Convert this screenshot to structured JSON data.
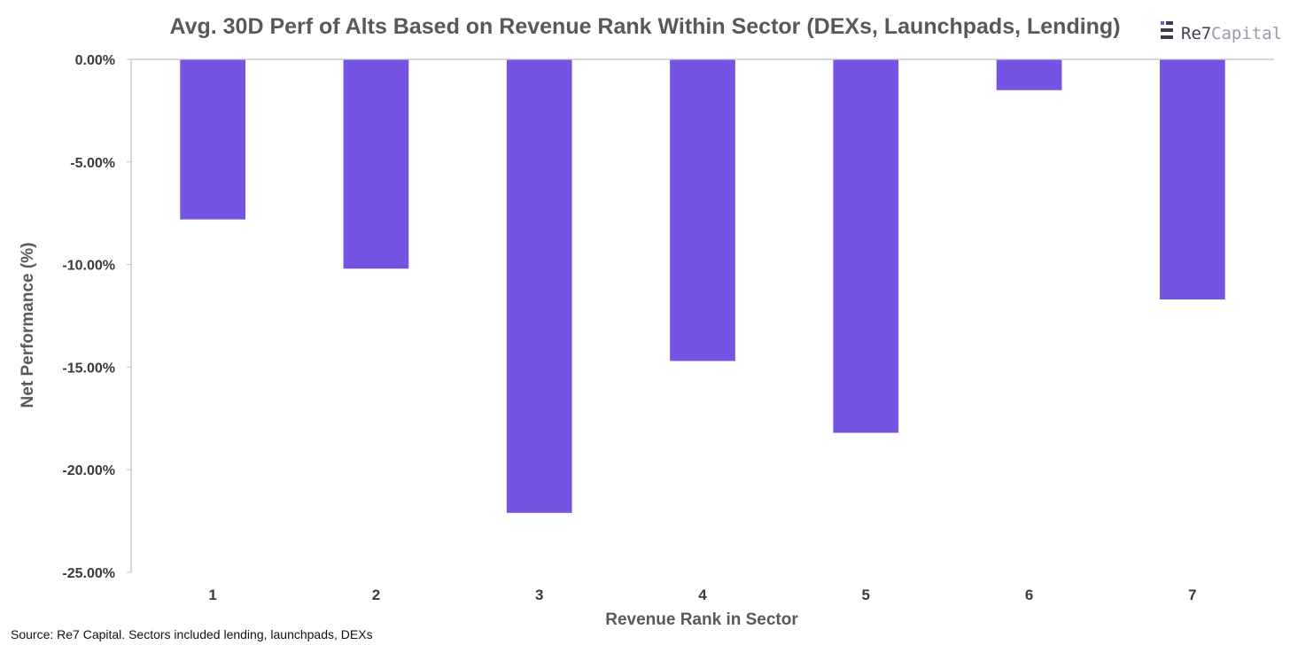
{
  "chart_data": {
    "type": "bar",
    "title": "Avg. 30D Perf of Alts Based on Revenue Rank Within Sector (DEXs, Launchpads, Lending)",
    "xlabel": "Revenue Rank in Sector",
    "ylabel": "Net Performance (%)",
    "categories": [
      "1",
      "2",
      "3",
      "4",
      "5",
      "6",
      "7"
    ],
    "values": [
      -7.8,
      -10.2,
      -22.1,
      -14.7,
      -18.2,
      -1.5,
      -11.7
    ],
    "ylim": [
      -25,
      0
    ],
    "yticks": [
      0,
      -5,
      -10,
      -15,
      -20,
      -25
    ],
    "ytick_labels": [
      "0.00%",
      "-5.00%",
      "-10.00%",
      "-15.00%",
      "-20.00%",
      "-25.00%"
    ],
    "grid": false,
    "bar_color": "#7653e3",
    "axis_color": "#c0c0c0",
    "source": "Source: Re7 Capital. Sectors included lending, launchpads, DEXs"
  },
  "logo": {
    "brand": "Re7",
    "suffix": "Capital",
    "icon": "re7-logo-icon",
    "accent_colors": [
      "#7653e3",
      "#3d3d4d"
    ]
  }
}
